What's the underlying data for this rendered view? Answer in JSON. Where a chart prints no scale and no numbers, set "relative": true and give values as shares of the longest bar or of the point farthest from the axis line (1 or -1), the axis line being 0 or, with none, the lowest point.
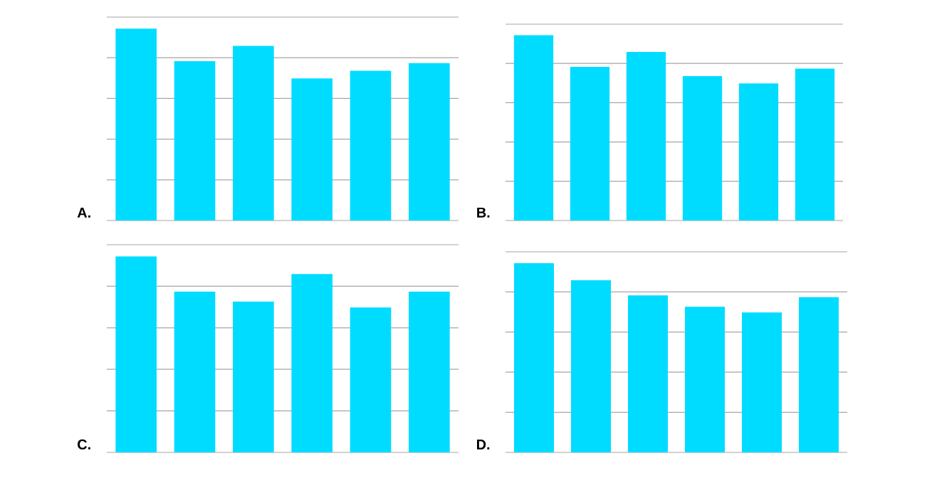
{
  "chart_data": [
    {
      "type": "bar",
      "title": "A.",
      "categories": [
        null,
        null,
        null,
        null,
        null,
        null
      ],
      "values": [
        1,
        0.83,
        0.91,
        0.74,
        0.78,
        0.82
      ],
      "color": "#00dcff",
      "relative": true,
      "grid": "y"
    },
    {
      "type": "bar",
      "title": "B.",
      "categories": [
        null,
        null,
        null,
        null,
        null,
        null
      ],
      "values": [
        1,
        0.83,
        0.91,
        0.78,
        0.74,
        0.82
      ],
      "color": "#00dcff",
      "relative": true,
      "grid": "y"
    },
    {
      "type": "bar",
      "title": "C.",
      "categories": [
        null,
        null,
        null,
        null,
        null,
        null
      ],
      "values": [
        1,
        0.82,
        0.77,
        0.91,
        0.74,
        0.82
      ],
      "color": "#00dcff",
      "relative": true,
      "grid": "y"
    },
    {
      "type": "bar",
      "title": "D.",
      "categories": [
        null,
        null,
        null,
        null,
        null,
        null
      ],
      "values": [
        1,
        0.91,
        0.83,
        0.77,
        0.74,
        0.82
      ],
      "color": "#00dcff",
      "relative": true,
      "grid": "y"
    }
  ]
}
